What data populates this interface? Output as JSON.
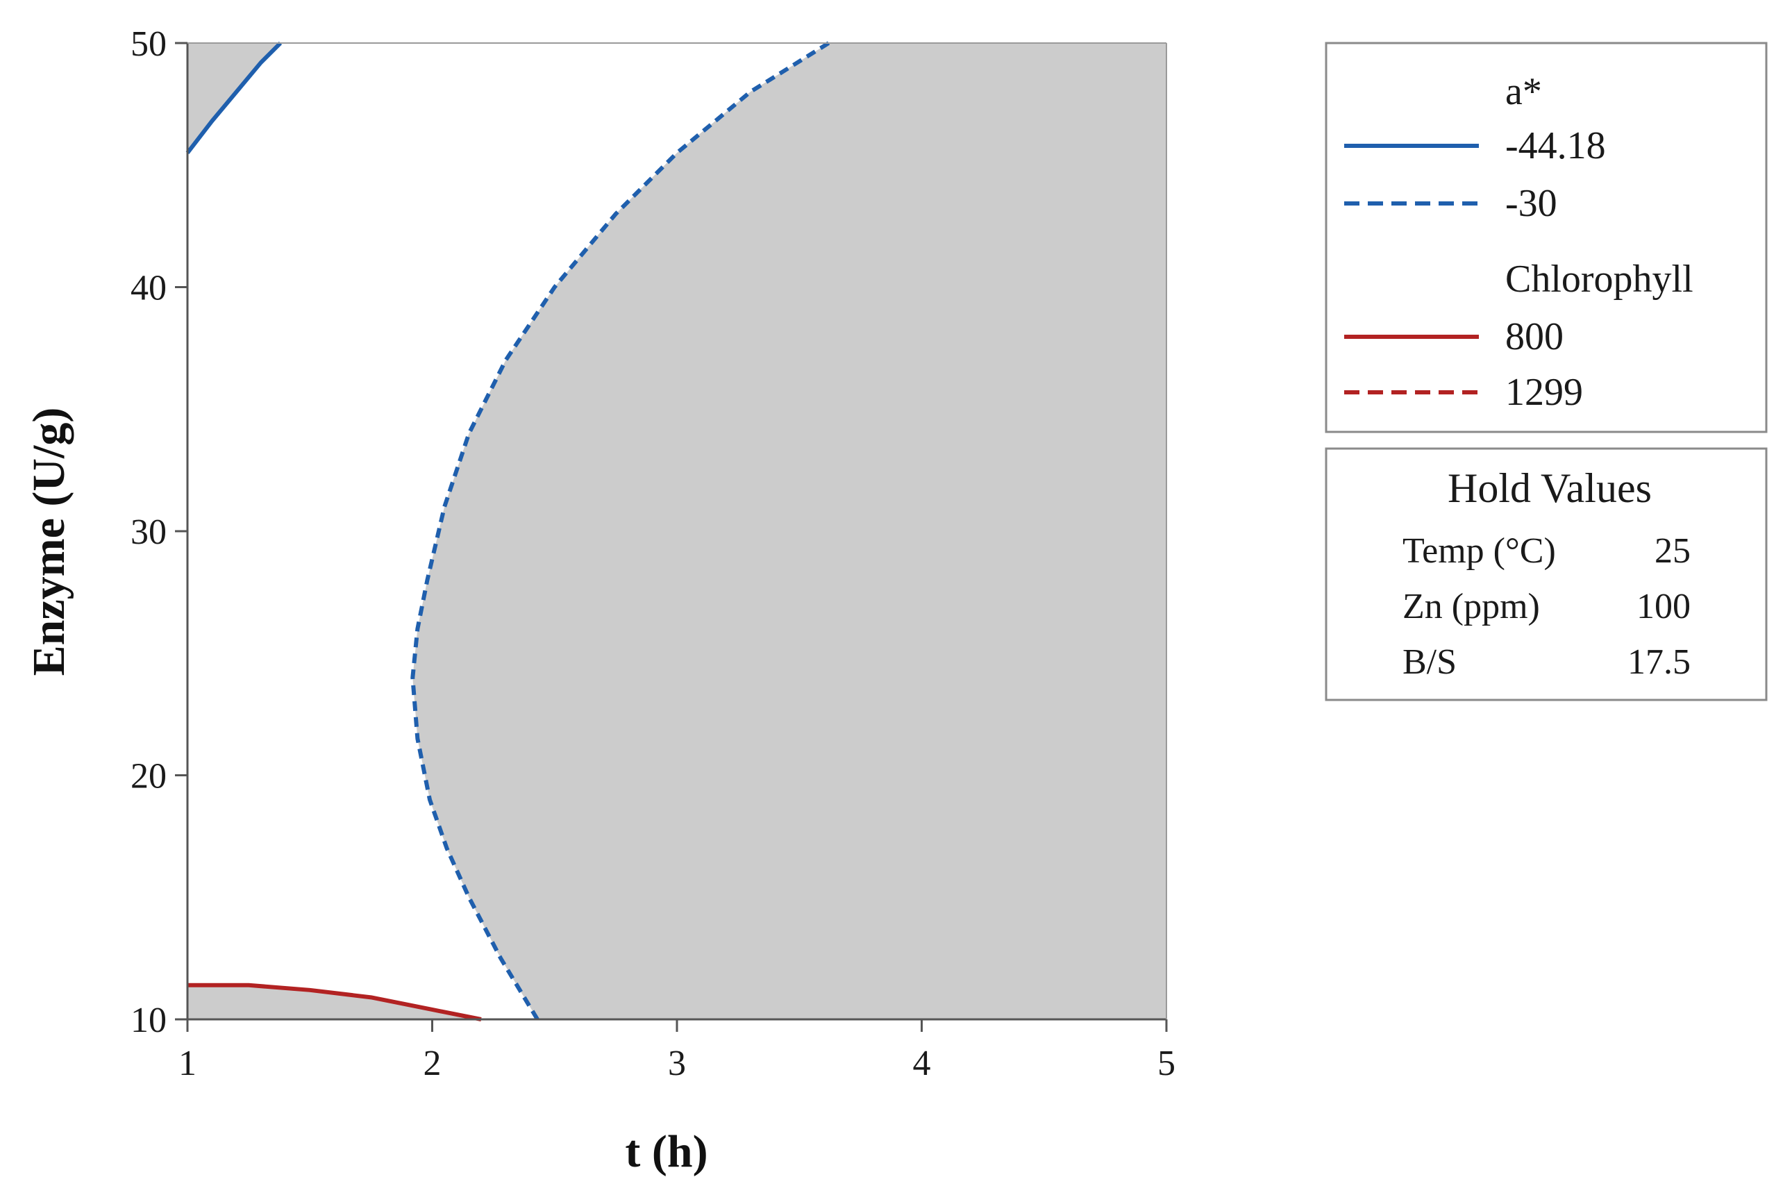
{
  "chart_data": {
    "type": "contour",
    "xlabel": "t (h)",
    "ylabel": "Enzyme (U/g)",
    "xlim": [
      1,
      5
    ],
    "ylim": [
      10,
      50
    ],
    "xticks": [
      "1",
      "2",
      "3",
      "4",
      "5"
    ],
    "yticks": [
      "10",
      "20",
      "30",
      "40",
      "50"
    ],
    "shading": "#cccccc",
    "series": [
      {
        "group": "a*",
        "name": "-44.18",
        "style": "solid",
        "color": "#1f5fad",
        "x": [
          1.0,
          1.1,
          1.2,
          1.3,
          1.38
        ],
        "y": [
          45.5,
          46.8,
          48.0,
          49.2,
          50.0
        ]
      },
      {
        "group": "a*",
        "name": "-30",
        "style": "dashed",
        "color": "#1f5fad",
        "x": [
          3.62,
          3.3,
          3.0,
          2.75,
          2.5,
          2.3,
          2.15,
          2.05,
          1.98,
          1.94,
          1.92,
          1.94,
          1.99,
          2.06,
          2.15,
          2.28,
          2.43
        ],
        "y": [
          50.0,
          48.0,
          45.5,
          43.0,
          40.0,
          37.0,
          34.0,
          31.0,
          28.0,
          26.0,
          24.0,
          21.5,
          19.0,
          17.0,
          15.0,
          12.5,
          10.0
        ]
      },
      {
        "group": "Chlorophyll",
        "name": "800",
        "style": "solid",
        "color": "#b22222",
        "x": [
          1.0,
          1.25,
          1.5,
          1.75,
          2.0,
          2.2
        ],
        "y": [
          11.4,
          11.4,
          11.2,
          10.9,
          10.4,
          10.0
        ]
      }
    ],
    "legend": [
      {
        "group": "a*",
        "items": [
          {
            "label": "-44.18",
            "style": "solid",
            "color": "#1f5fad"
          },
          {
            "label": "-30",
            "style": "dashed",
            "color": "#1f5fad"
          }
        ]
      },
      {
        "group": "Chlorophyll",
        "items": [
          {
            "label": "800",
            "style": "solid",
            "color": "#b22222"
          },
          {
            "label": "1299",
            "style": "dashed",
            "color": "#b22222"
          }
        ]
      }
    ],
    "hold_values": {
      "title": "Hold Values",
      "rows": [
        {
          "label": "Temp (°C)",
          "value": "25"
        },
        {
          "label": "Zn (ppm)",
          "value": "100"
        },
        {
          "label": "B/S",
          "value": "17.5"
        }
      ]
    }
  }
}
